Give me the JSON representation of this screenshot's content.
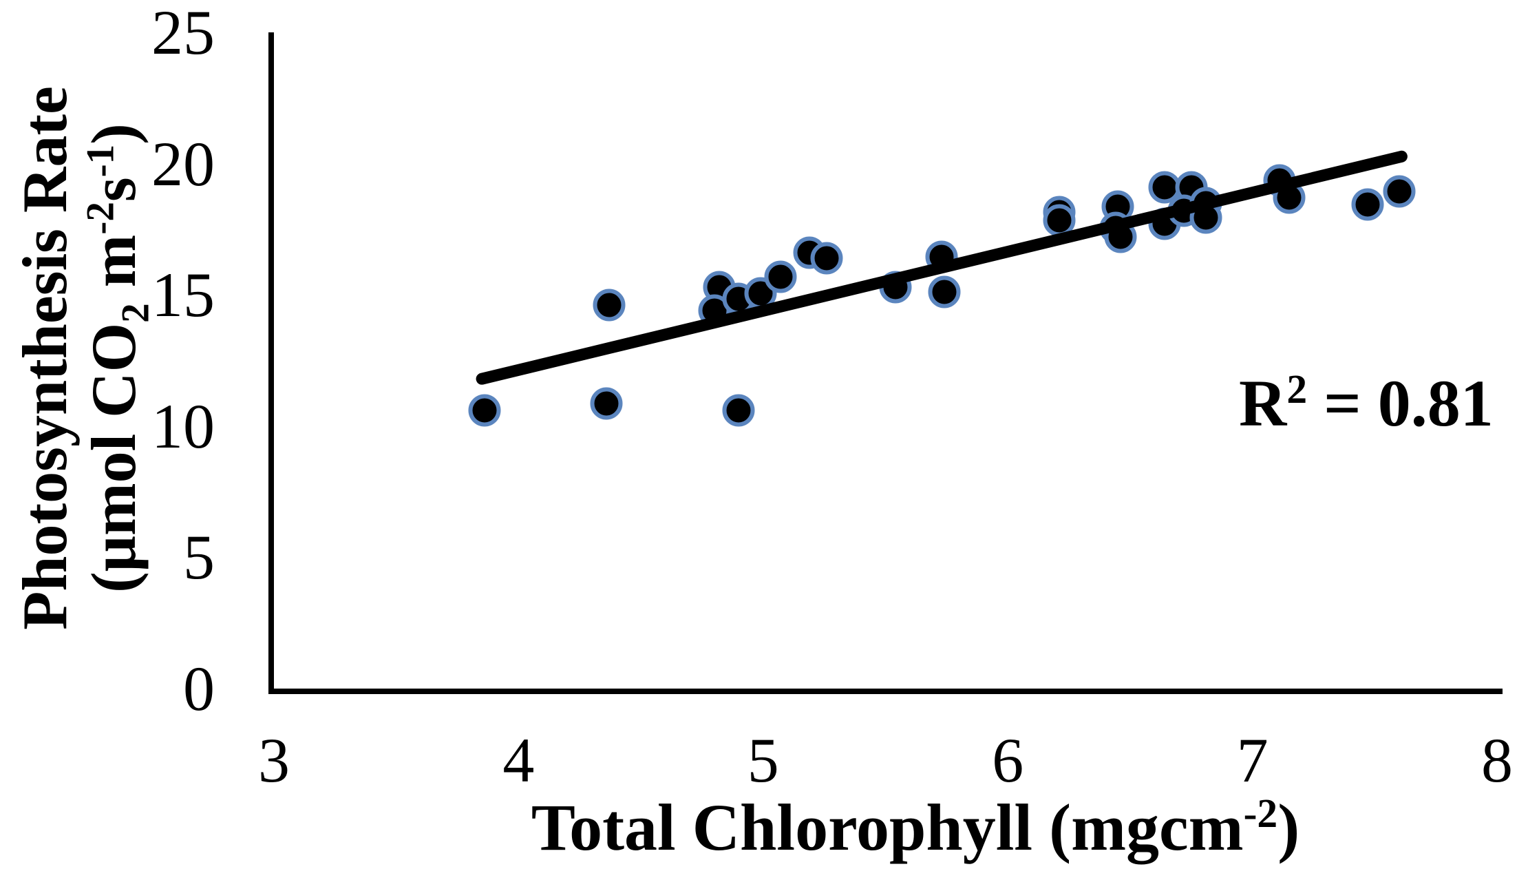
{
  "labels": {
    "y_title_line1": "Photosynthesis Rate",
    "y_title_pre": "(μmol CO",
    "y_title_sub": "2",
    "y_title_mid": " m",
    "y_title_sup1": "-2",
    "y_title_s": "s",
    "y_title_sup2": "-1",
    "y_title_close": ")",
    "x_title_pre": "Total Chlorophyll (mgcm",
    "x_title_sup": "-2",
    "x_title_close": ")",
    "r2_pre": "R",
    "r2_sup": "2",
    "r2_post": " = 0.81"
  },
  "chart_data": {
    "type": "scatter",
    "title": "",
    "xlabel": "Total Chlorophyll (mgcm⁻²)",
    "ylabel": "Photosynthesis Rate (μmol CO₂ m⁻²s⁻¹)",
    "xlim": [
      3,
      8
    ],
    "ylim": [
      0,
      25
    ],
    "x_ticks": [
      3,
      4,
      5,
      6,
      7,
      8
    ],
    "y_ticks": [
      0,
      5,
      10,
      15,
      20,
      25
    ],
    "grid": false,
    "legend": false,
    "annotation": "R² = 0.81",
    "r_squared": 0.81,
    "points": [
      [
        3.86,
        10.6
      ],
      [
        4.36,
        10.85
      ],
      [
        4.37,
        14.6
      ],
      [
        4.9,
        10.6
      ],
      [
        4.82,
        15.3
      ],
      [
        4.8,
        14.4
      ],
      [
        4.9,
        14.85
      ],
      [
        4.99,
        15.05
      ],
      [
        5.07,
        15.7
      ],
      [
        5.19,
        16.6
      ],
      [
        5.26,
        16.4
      ],
      [
        5.54,
        15.3
      ],
      [
        5.73,
        16.45
      ],
      [
        5.74,
        15.1
      ],
      [
        6.21,
        18.15
      ],
      [
        6.21,
        17.85
      ],
      [
        6.45,
        18.35
      ],
      [
        6.44,
        17.55
      ],
      [
        6.46,
        17.2
      ],
      [
        6.64,
        19.1
      ],
      [
        6.75,
        19.1
      ],
      [
        6.64,
        17.7
      ],
      [
        6.72,
        18.2
      ],
      [
        6.81,
        18.5
      ],
      [
        6.81,
        17.95
      ],
      [
        7.11,
        19.35
      ],
      [
        7.15,
        18.7
      ],
      [
        7.47,
        18.45
      ],
      [
        7.6,
        18.95
      ]
    ],
    "trendline": {
      "x1": 3.85,
      "y1": 11.8,
      "x2": 7.61,
      "y2": 20.27
    },
    "colors": {
      "marker_fill": "#000000",
      "marker_ring": "#5B85BE",
      "trendline": "#000000",
      "axis": "#000000",
      "text": "#000000"
    }
  }
}
